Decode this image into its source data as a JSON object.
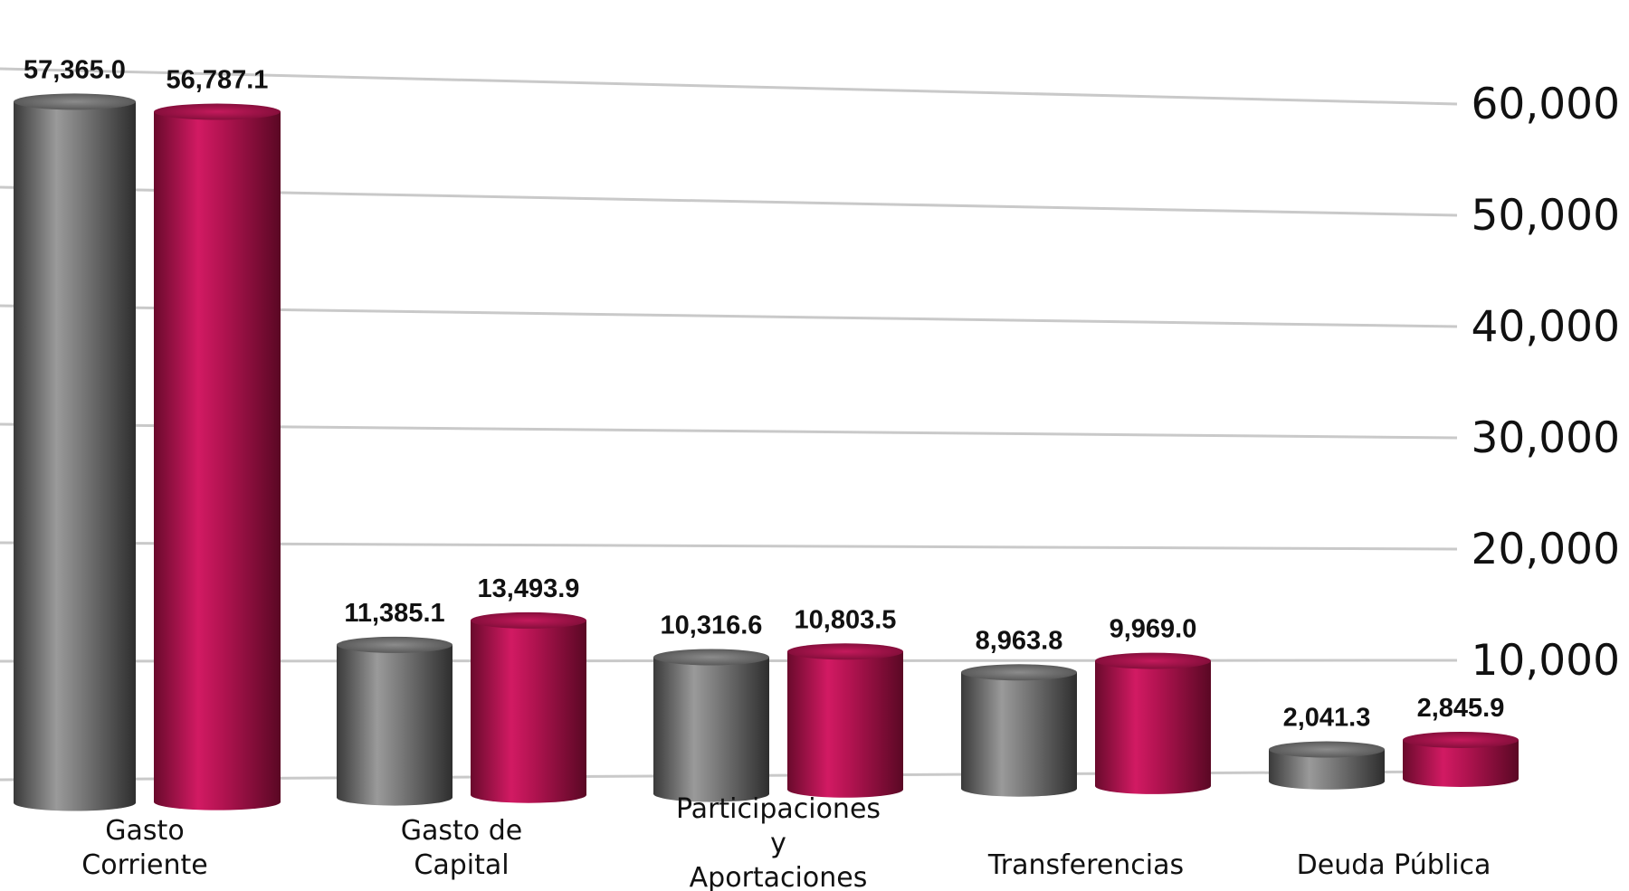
{
  "chart_data": {
    "type": "bar",
    "categories": [
      [
        "Gasto",
        "Corriente"
      ],
      [
        "Gasto de",
        "Capital"
      ],
      [
        "Participaciones",
        "y",
        "Aportaciones"
      ],
      [
        "Transferencias"
      ],
      [
        "Deuda Pública"
      ]
    ],
    "series": [
      {
        "color": "#6e6e6e",
        "values": [
          57365.0,
          11385.1,
          10316.6,
          8963.8,
          2041.3
        ],
        "labels": [
          "57,365.0",
          "11,385.1",
          "10,316.6",
          "8,963.8",
          "2,041.3"
        ]
      },
      {
        "color": "#b0104e",
        "values": [
          56787.1,
          13493.9,
          10803.5,
          9969.0,
          2845.9
        ],
        "labels": [
          "56,787.1",
          "13,493.9",
          "10,803.5",
          "9,969.0",
          "2,845.9"
        ]
      }
    ],
    "yticks": [
      "10,000",
      "20,000",
      "30,000",
      "40,000",
      "50,000",
      "60,000"
    ],
    "ylim": [
      0,
      60000
    ],
    "axis_position": "right",
    "grid": true,
    "style": "3d-cylinder"
  }
}
